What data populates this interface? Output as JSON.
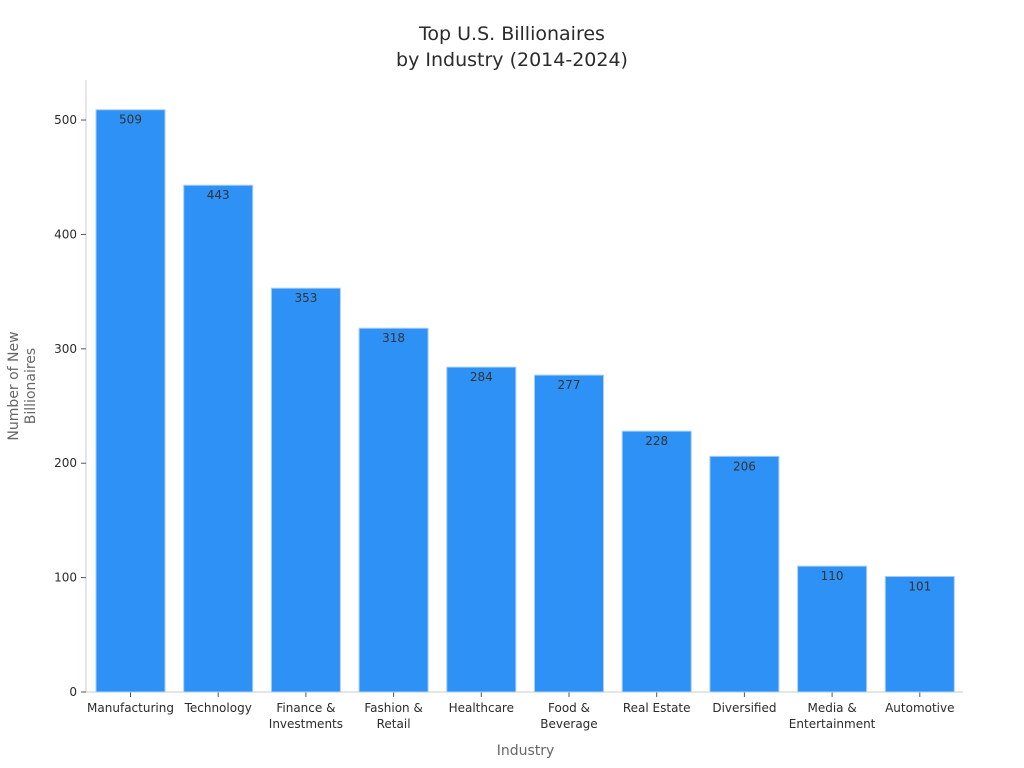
{
  "chart_data": {
    "type": "bar",
    "title": "Top U.S. Billionaires\nby Industry (2014-2024)",
    "xlabel": "Industry",
    "ylabel": "Number of New\nBillionaires",
    "categories": [
      "Manufacturing",
      "Technology",
      "Finance &\nInvestments",
      "Fashion &\nRetail",
      "Healthcare",
      "Food &\nBeverage",
      "Real Estate",
      "Diversified",
      "Media &\nEntertainment",
      "Automotive"
    ],
    "values": [
      509,
      443,
      353,
      318,
      284,
      277,
      228,
      206,
      110,
      101
    ],
    "ylim": [
      0,
      535
    ],
    "yticks": [
      0,
      100,
      200,
      300,
      400,
      500
    ],
    "grid": false,
    "legend": "none",
    "data_labels": true,
    "colors": {
      "bar": "#2e91f6",
      "bar_edge": "#a9cdf5",
      "axis": "#cccccc",
      "text": "#2b2b2b",
      "axis_title": "#666666"
    }
  }
}
